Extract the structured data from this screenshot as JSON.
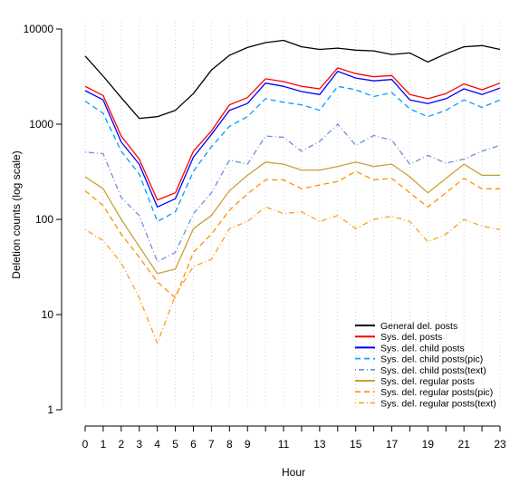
{
  "chart_data": {
    "type": "line",
    "title": "",
    "xlabel": "Hour",
    "ylabel": "Deletion counts (log scale)",
    "yscale": "log",
    "ylim": [
      1,
      10000
    ],
    "xlim": [
      0,
      23
    ],
    "x": [
      0,
      1,
      2,
      3,
      4,
      5,
      6,
      7,
      8,
      9,
      10,
      11,
      12,
      13,
      14,
      15,
      16,
      17,
      18,
      19,
      20,
      21,
      22,
      23
    ],
    "x_tick_labels": [
      "0",
      "1",
      "2",
      "3",
      "4",
      "5",
      "6",
      "7",
      "8",
      "9",
      "11",
      "13",
      "15",
      "17",
      "19",
      "21",
      "23"
    ],
    "x_tick_values": [
      0,
      1,
      2,
      3,
      4,
      5,
      6,
      7,
      8,
      9,
      11,
      13,
      15,
      17,
      19,
      21,
      23
    ],
    "y_tick_labels": [
      "1",
      "10",
      "100",
      "1000",
      "10000"
    ],
    "y_tick_values": [
      1,
      10,
      100,
      1000,
      10000
    ],
    "grid": "vertical dotted at each hour",
    "legend_position": "bottom-right",
    "series": [
      {
        "name": "General del. posts",
        "color": "#000000",
        "dash": "solid",
        "values": [
          5200,
          3200,
          1900,
          1150,
          1200,
          1400,
          2100,
          3700,
          5300,
          6400,
          7200,
          7600,
          6500,
          6100,
          6300,
          6000,
          5900,
          5400,
          5600,
          4500,
          5500,
          6500,
          6700,
          6100
        ]
      },
      {
        "name": "Sys. del. posts",
        "color": "#ff0000",
        "dash": "solid",
        "values": [
          2500,
          2000,
          750,
          430,
          160,
          190,
          520,
          850,
          1600,
          1900,
          3000,
          2800,
          2500,
          2350,
          3900,
          3400,
          3150,
          3250,
          2050,
          1850,
          2100,
          2650,
          2300,
          2700
        ]
      },
      {
        "name": "Sys. del. child posts",
        "color": "#0000ff",
        "dash": "solid",
        "values": [
          2250,
          1800,
          650,
          380,
          135,
          165,
          450,
          780,
          1400,
          1650,
          2700,
          2500,
          2200,
          2050,
          3600,
          3050,
          2850,
          2950,
          1800,
          1650,
          1850,
          2350,
          2050,
          2400
        ]
      },
      {
        "name": "Sys. del. child posts(pic)",
        "color": "#00a0ff",
        "dash": "dashed",
        "values": [
          1750,
          1300,
          520,
          300,
          95,
          120,
          320,
          580,
          950,
          1200,
          1850,
          1700,
          1600,
          1400,
          2500,
          2300,
          1950,
          2150,
          1450,
          1200,
          1400,
          1800,
          1500,
          1800
        ]
      },
      {
        "name": "Sys. del. child posts(text)",
        "color": "#6e8fd8",
        "dash": "dotdash",
        "values": [
          510,
          490,
          170,
          110,
          36,
          45,
          115,
          190,
          420,
          380,
          750,
          730,
          520,
          660,
          1000,
          600,
          760,
          680,
          380,
          470,
          390,
          430,
          520,
          600
        ]
      },
      {
        "name": "Sys. del. regular posts",
        "color": "#c8a036",
        "dash": "solid",
        "values": [
          280,
          210,
          100,
          52,
          27,
          30,
          80,
          110,
          200,
          290,
          400,
          380,
          330,
          330,
          360,
          400,
          360,
          380,
          280,
          190,
          270,
          380,
          290,
          290
        ]
      },
      {
        "name": "Sys. del. regular posts(pic)",
        "color": "#ff9000",
        "dash": "dashed",
        "values": [
          200,
          140,
          70,
          40,
          22,
          15,
          45,
          70,
          125,
          185,
          260,
          260,
          210,
          230,
          250,
          320,
          260,
          270,
          190,
          135,
          190,
          270,
          210,
          210
        ]
      },
      {
        "name": "Sys. del. regular posts(text)",
        "color": "#ffa020",
        "dash": "dotdash",
        "values": [
          78,
          60,
          35,
          15,
          5,
          16,
          32,
          38,
          80,
          95,
          135,
          115,
          120,
          95,
          110,
          80,
          100,
          108,
          95,
          58,
          70,
          100,
          85,
          78
        ]
      }
    ]
  }
}
